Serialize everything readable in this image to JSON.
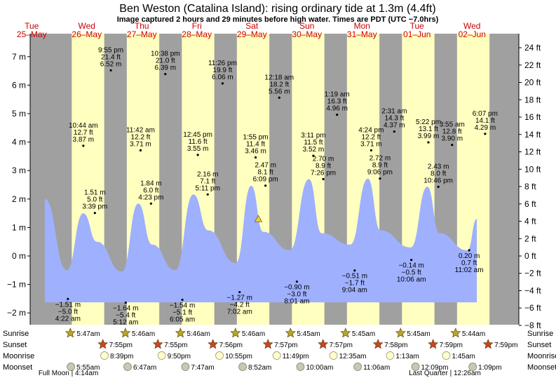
{
  "title": "Ben Weston (Catalina Island): rising  ordinary tide at 1.3m (4.4ft)",
  "subtitle": "Image captured 2 hours and 29 minutes before high water. Times are PDT (UTC −7.0hrs)",
  "colors": {
    "night": "#a0a0a0",
    "day": "#ffffc0",
    "tide": "#9fb0ff",
    "day_label": "#cc0000",
    "sun": "#b5a62a",
    "sunset": "#cc4422",
    "moonrise": "#ffffcc",
    "moonset": "#c8c8b4"
  },
  "days": [
    {
      "name": "Tue",
      "date": "25–May"
    },
    {
      "name": "Wed",
      "date": "26–May"
    },
    {
      "name": "Thu",
      "date": "27–May"
    },
    {
      "name": "Fri",
      "date": "28–May"
    },
    {
      "name": "Sat",
      "date": "29–May"
    },
    {
      "name": "Sun",
      "date": "30–May"
    },
    {
      "name": "Mon",
      "date": "31–May"
    },
    {
      "name": "Tue",
      "date": "01–Jun"
    },
    {
      "name": "Wed",
      "date": "02–Jun"
    }
  ],
  "row_labels": [
    "Sunrise",
    "Sunset",
    "Moonrise",
    "Moonset"
  ],
  "left_axis": {
    "labels": [
      "−2 m",
      "−1 m",
      "0 m",
      "1 m",
      "2 m",
      "3 m",
      "4 m",
      "5 m",
      "6 m",
      "7 m"
    ],
    "values": [
      -2,
      -1,
      0,
      1,
      2,
      3,
      4,
      5,
      6,
      7
    ]
  },
  "right_axis": {
    "labels": [
      "−8 ft",
      "−6 ft",
      "−4 ft",
      "−2 ft",
      "0 ft",
      "2 ft",
      "4 ft",
      "6 ft",
      "8 ft",
      "10 ft",
      "12 ft",
      "14 ft",
      "16 ft",
      "18 ft",
      "20 ft",
      "22 ft",
      "24 ft"
    ],
    "values": [
      -8,
      -6,
      -4,
      -2,
      0,
      2,
      4,
      6,
      8,
      10,
      12,
      14,
      16,
      18,
      20,
      22,
      24
    ]
  },
  "chart_data": {
    "type": "area",
    "title": "Ben Weston (Catalina Island): rising  ordinary tide at 1.3m (4.4ft)",
    "ylabel": "m",
    "ylim": [
      -2.4,
      7.5
    ],
    "y2lim_ft": [
      -8,
      24.6
    ],
    "current_level_m": 1.3,
    "tide_curve": {
      "day_offsets": [
        0.75,
        1.15,
        1.45,
        1.7,
        2.15,
        2.45,
        2.7,
        3.12,
        3.45,
        3.72,
        4.22,
        4.5,
        4.72,
        5.2,
        5.55,
        5.78,
        6.3,
        6.62,
        6.85,
        7.4,
        7.7,
        7.92,
        8.43,
        8.6
      ],
      "heights_m": [
        2.0,
        -0.5,
        1.5,
        0.5,
        -0.55,
        1.84,
        0.4,
        -0.5,
        2.16,
        0.9,
        -0.25,
        2.47,
        0.85,
        0.2,
        2.7,
        0.8,
        0.4,
        2.72,
        0.9,
        0.3,
        2.43,
        0.8,
        0.2,
        1.3
      ]
    },
    "annotations": [
      {
        "pos": "below",
        "day": 1.17,
        "height": -1.51,
        "lines": [
          "−1.51 m",
          "−5.0 ft",
          "4:22 am"
        ]
      },
      {
        "pos": "above",
        "day": 1.45,
        "height": 3.87,
        "lines": [
          "10:44 am",
          "12.7 ft",
          "3.87 m"
        ]
      },
      {
        "pos": "above",
        "day": 1.66,
        "height": 1.51,
        "lines": [
          "1.51 m",
          "5.0 ft",
          "3:39 pm"
        ]
      },
      {
        "pos": "above",
        "day": 1.95,
        "height": 6.52,
        "lines": [
          "9:55 pm",
          "21.4 ft",
          "6.52 m"
        ]
      },
      {
        "pos": "below",
        "day": 2.22,
        "height": -1.64,
        "lines": [
          "−1.64 m",
          "−5.4 ft",
          "5:12 am"
        ]
      },
      {
        "pos": "above",
        "day": 2.49,
        "height": 3.71,
        "lines": [
          "11:42 am",
          "12.2 ft",
          "3.71 m"
        ]
      },
      {
        "pos": "above",
        "day": 2.68,
        "height": 1.84,
        "lines": [
          "1.84 m",
          "6.0 ft",
          "4:23 pm"
        ]
      },
      {
        "pos": "above",
        "day": 2.94,
        "height": 6.39,
        "lines": [
          "10:38 pm",
          "21.0 ft",
          "6.39 m"
        ]
      },
      {
        "pos": "below",
        "day": 3.25,
        "height": -1.54,
        "lines": [
          "−1.54 m",
          "−5.1 ft",
          "6:05 am"
        ]
      },
      {
        "pos": "above",
        "day": 3.53,
        "height": 3.55,
        "lines": [
          "12:45 pm",
          "11.6 ft",
          "3.55 m"
        ]
      },
      {
        "pos": "above",
        "day": 3.71,
        "height": 2.16,
        "lines": [
          "2.16 m",
          "7.1 ft",
          "5:11 pm"
        ]
      },
      {
        "pos": "above",
        "day": 3.98,
        "height": 6.06,
        "lines": [
          "11:26 pm",
          "19.9 ft",
          "6.06 m"
        ]
      },
      {
        "pos": "below",
        "day": 4.29,
        "height": -1.27,
        "lines": [
          "−1.27 m",
          "−4.2 ft",
          "7:02 am"
        ]
      },
      {
        "pos": "above",
        "day": 4.58,
        "height": 3.46,
        "lines": [
          "1:55 pm",
          "11.4 ft",
          "3.46 m"
        ]
      },
      {
        "pos": "above",
        "day": 4.76,
        "height": 2.47,
        "lines": [
          "2.47 m",
          "8.1 ft",
          "6:09 pm"
        ]
      },
      {
        "pos": "above",
        "day": 5.01,
        "height": 5.56,
        "lines": [
          "12:18 am",
          "18.2 ft",
          "5.56 m"
        ]
      },
      {
        "pos": "below",
        "day": 5.33,
        "height": -0.9,
        "lines": [
          "−0.90 m",
          "−3.0 ft",
          "8:01 am"
        ]
      },
      {
        "pos": "above",
        "day": 5.63,
        "height": 3.52,
        "lines": [
          "3:11 pm",
          "11.5 ft",
          "3.52 m"
        ]
      },
      {
        "pos": "above",
        "day": 5.81,
        "height": 2.7,
        "lines": [
          "2.70 m",
          "8.9 ft",
          "7:26 pm"
        ]
      },
      {
        "pos": "above",
        "day": 6.06,
        "height": 4.96,
        "lines": [
          "1:19 am",
          "16.3 ft",
          "4.96 m"
        ]
      },
      {
        "pos": "below",
        "day": 6.38,
        "height": -0.51,
        "lines": [
          "−0.51 m",
          "−1.7 ft",
          "9:04 am"
        ]
      },
      {
        "pos": "above",
        "day": 6.68,
        "height": 3.71,
        "lines": [
          "4:24 pm",
          "12.2 ft",
          "3.71 m"
        ]
      },
      {
        "pos": "above",
        "day": 6.84,
        "height": 2.72,
        "lines": [
          "2.72 m",
          "8.9 ft",
          "9:06 pm"
        ]
      },
      {
        "pos": "above",
        "day": 7.1,
        "height": 4.37,
        "lines": [
          "2:31 am",
          "14.3 ft",
          "4.37 m"
        ]
      },
      {
        "pos": "below",
        "day": 7.41,
        "height": -0.14,
        "lines": [
          "−0.14 m",
          "−0.5 ft",
          "10:06 am"
        ]
      },
      {
        "pos": "above",
        "day": 7.72,
        "height": 3.99,
        "lines": [
          "5:22 pm",
          "13.1 ft",
          "3.99 m"
        ]
      },
      {
        "pos": "above",
        "day": 7.9,
        "height": 2.43,
        "lines": [
          "2.43 m",
          "8.0 ft",
          "10:46 pm"
        ]
      },
      {
        "pos": "above",
        "day": 8.15,
        "height": 3.9,
        "lines": [
          "3:55 am",
          "12.8 ft",
          "3.90 m"
        ]
      },
      {
        "pos": "below",
        "day": 8.46,
        "height": 0.2,
        "lines": [
          "0.20 m",
          "0.7 ft",
          "11:02 am"
        ]
      },
      {
        "pos": "above",
        "day": 8.75,
        "height": 4.29,
        "lines": [
          "6:07 pm",
          "14.1 ft",
          "4.29 m"
        ]
      }
    ],
    "sunrise": [
      {
        "day": 1.24,
        "label": "5:47am"
      },
      {
        "day": 2.24,
        "label": "5:46am"
      },
      {
        "day": 3.24,
        "label": "5:46am"
      },
      {
        "day": 4.24,
        "label": "5:46am"
      },
      {
        "day": 5.24,
        "label": "5:45am"
      },
      {
        "day": 6.24,
        "label": "5:45am"
      },
      {
        "day": 7.24,
        "label": "5:45am"
      },
      {
        "day": 8.24,
        "label": "5:44am"
      }
    ],
    "sunset": [
      {
        "day": 1.83,
        "label": "7:55pm"
      },
      {
        "day": 2.83,
        "label": "7:55pm"
      },
      {
        "day": 3.83,
        "label": "7:56pm"
      },
      {
        "day": 4.83,
        "label": "7:57pm"
      },
      {
        "day": 5.83,
        "label": "7:57pm"
      },
      {
        "day": 6.83,
        "label": "7:58pm"
      },
      {
        "day": 7.83,
        "label": "7:59pm"
      },
      {
        "day": 8.83,
        "label": "7:59pm"
      }
    ],
    "moonrise": [
      {
        "day": 1.86,
        "label": "8:39pm"
      },
      {
        "day": 2.9,
        "label": "9:50pm"
      },
      {
        "day": 3.95,
        "label": "10:55pm"
      },
      {
        "day": 4.99,
        "label": "11:49pm"
      },
      {
        "day": 6.02,
        "label": "12:35am"
      },
      {
        "day": 7.05,
        "label": "1:13am"
      },
      {
        "day": 8.07,
        "label": "1:45am"
      }
    ],
    "moonset": [
      {
        "day": 1.25,
        "label": "5:55am"
      },
      {
        "day": 2.28,
        "label": "6:47am"
      },
      {
        "day": 3.33,
        "label": "7:47am"
      },
      {
        "day": 4.37,
        "label": "8:52am"
      },
      {
        "day": 5.42,
        "label": "10:00am"
      },
      {
        "day": 6.46,
        "label": "11:06am"
      },
      {
        "day": 7.51,
        "label": "12:09pm"
      },
      {
        "day": 8.55,
        "label": "1:09pm"
      }
    ],
    "moon_phases": [
      {
        "day": 1.18,
        "label": "Full Moon | 4:14am"
      },
      {
        "day": 8.02,
        "label": "Last Quarter | 12:26am"
      }
    ]
  }
}
